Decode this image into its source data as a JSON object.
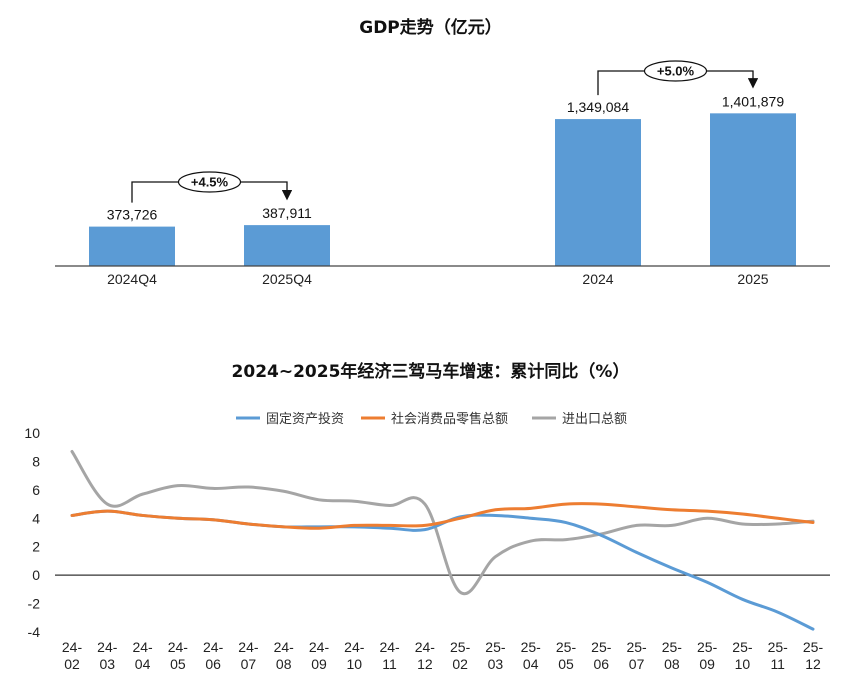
{
  "chart_data": [
    {
      "type": "bar",
      "title": "GDP走势（亿元）",
      "categories": [
        "2024Q4",
        "2025Q4",
        "2024",
        "2025"
      ],
      "values": [
        373726,
        387911,
        1349084,
        1401879
      ],
      "value_labels": [
        "373,726",
        "387,911",
        "1,349,084",
        "1,401,879"
      ],
      "annotations": [
        {
          "from": "2024Q4",
          "to": "2025Q4",
          "text": "+4.5%"
        },
        {
          "from": "2024",
          "to": "2025",
          "text": "+5.0%"
        }
      ],
      "colors": {
        "bar": "#5b9bd5"
      }
    },
    {
      "type": "line",
      "title": "2024~2025年经济三驾马车增速：累计同比（%）",
      "categories": [
        "24-02",
        "24-03",
        "24-04",
        "24-05",
        "24-06",
        "24-07",
        "24-08",
        "24-09",
        "24-10",
        "24-11",
        "24-12",
        "25-02",
        "25-03",
        "25-04",
        "25-05",
        "25-06",
        "25-07",
        "25-08",
        "25-09",
        "25-10",
        "25-11",
        "25-12"
      ],
      "ylim": [
        -4,
        10
      ],
      "yticks": [
        "-4",
        "-2",
        "0",
        "2",
        "4",
        "6",
        "8",
        "10"
      ],
      "legend_position": "top-center",
      "series": [
        {
          "name": "固定资产投资",
          "color": "#5b9bd5",
          "values": [
            4.2,
            4.5,
            4.2,
            4.0,
            3.9,
            3.6,
            3.4,
            3.4,
            3.4,
            3.3,
            3.2,
            4.1,
            4.2,
            4.0,
            3.7,
            2.8,
            1.6,
            0.5,
            -0.5,
            -1.7,
            -2.6,
            -3.8
          ]
        },
        {
          "name": "社会消费品零售总额",
          "color": "#ed7d31",
          "values": [
            4.2,
            4.5,
            4.2,
            4.0,
            3.9,
            3.6,
            3.4,
            3.3,
            3.5,
            3.5,
            3.5,
            4.0,
            4.6,
            4.7,
            5.0,
            5.0,
            4.8,
            4.6,
            4.5,
            4.3,
            4.0,
            3.7
          ]
        },
        {
          "name": "进出口总额",
          "color": "#a5a5a5",
          "values": [
            8.7,
            5.0,
            5.7,
            6.3,
            6.1,
            6.2,
            5.9,
            5.3,
            5.2,
            4.9,
            5.0,
            -1.2,
            1.3,
            2.4,
            2.5,
            2.9,
            3.5,
            3.5,
            4.0,
            3.6,
            3.6,
            3.8
          ]
        }
      ]
    }
  ]
}
